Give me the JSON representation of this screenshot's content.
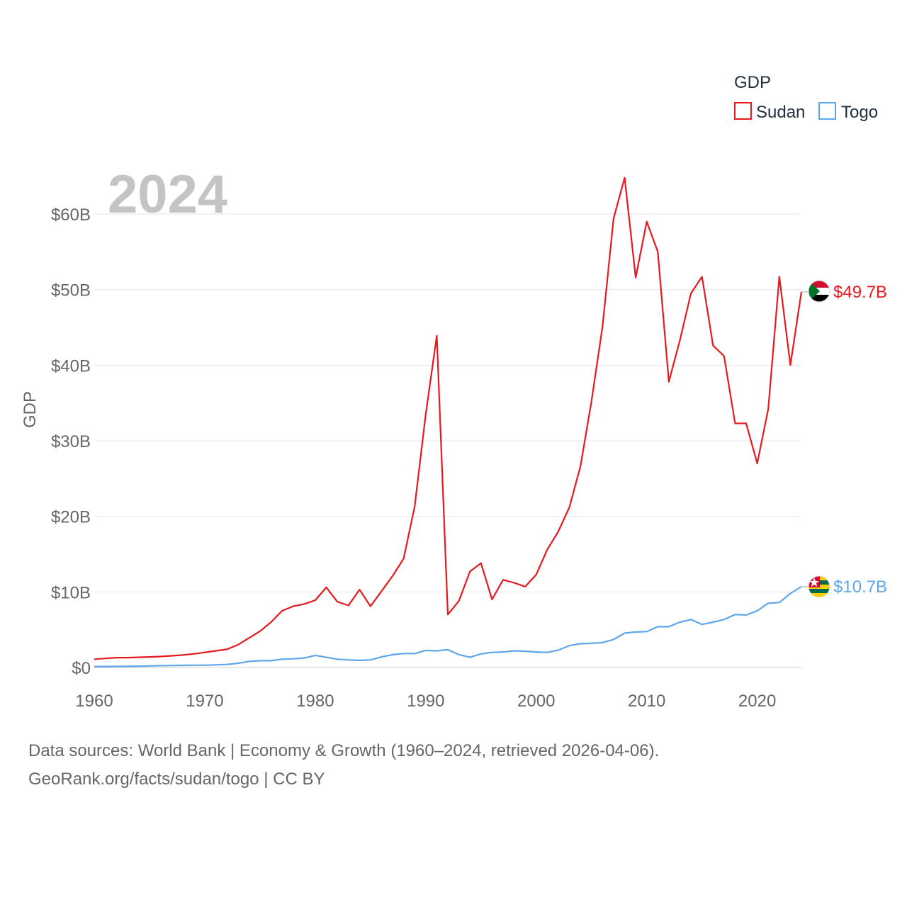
{
  "chart_data": {
    "type": "line",
    "title": "2024",
    "ylabel": "GDP",
    "xlim": [
      1960,
      2024
    ],
    "ylim": [
      0,
      65
    ],
    "x_ticks": [
      "1960",
      "1970",
      "1980",
      "1990",
      "2000",
      "2010",
      "2020"
    ],
    "x_tick_values": [
      1960,
      1970,
      1980,
      1990,
      2000,
      2010,
      2020
    ],
    "y_ticks": [
      "$0",
      "$10B",
      "$20B",
      "$30B",
      "$40B",
      "$50B",
      "$60B"
    ],
    "y_tick_values": [
      0,
      10,
      20,
      30,
      40,
      50,
      60
    ],
    "legend_title": "GDP",
    "x": [
      1960,
      1961,
      1962,
      1963,
      1964,
      1965,
      1966,
      1967,
      1968,
      1969,
      1970,
      1971,
      1972,
      1973,
      1974,
      1975,
      1976,
      1977,
      1978,
      1979,
      1980,
      1981,
      1982,
      1983,
      1984,
      1985,
      1986,
      1987,
      1988,
      1989,
      1990,
      1991,
      1992,
      1993,
      1994,
      1995,
      1996,
      1997,
      1998,
      1999,
      2000,
      2001,
      2002,
      2003,
      2004,
      2005,
      2006,
      2007,
      2008,
      2009,
      2010,
      2011,
      2012,
      2013,
      2014,
      2015,
      2016,
      2017,
      2018,
      2019,
      2020,
      2021,
      2022,
      2023,
      2024
    ],
    "series": [
      {
        "name": "Sudan",
        "color": "#e6191f",
        "end_label": "$49.7B",
        "flag": "sudan-flag-icon",
        "values": [
          1.1,
          1.2,
          1.3,
          1.3,
          1.35,
          1.4,
          1.45,
          1.55,
          1.65,
          1.8,
          2.0,
          2.2,
          2.4,
          3.0,
          3.9,
          4.8,
          6.0,
          7.5,
          8.1,
          8.4,
          8.9,
          10.6,
          8.7,
          8.2,
          10.3,
          8.1,
          10.1,
          12.1,
          14.4,
          21.3,
          33.5,
          43.9,
          7.0,
          8.8,
          12.7,
          13.8,
          9.0,
          11.6,
          11.2,
          10.7,
          12.3,
          15.6,
          18.0,
          21.2,
          26.6,
          35.2,
          45.1,
          59.4,
          64.8,
          51.6,
          59.0,
          55.0,
          37.8,
          43.3,
          49.5,
          51.7,
          42.6,
          41.2,
          32.3,
          32.3,
          27.0,
          34.2,
          51.7,
          40.0,
          49.7
        ]
      },
      {
        "name": "Togo",
        "color": "#5ea6ea",
        "end_label": "$10.7B",
        "flag": "togo-flag-icon",
        "values": [
          0.12,
          0.13,
          0.14,
          0.16,
          0.18,
          0.21,
          0.24,
          0.26,
          0.28,
          0.3,
          0.3,
          0.35,
          0.4,
          0.55,
          0.8,
          0.9,
          0.9,
          1.1,
          1.15,
          1.25,
          1.6,
          1.35,
          1.1,
          1.0,
          0.95,
          1.0,
          1.4,
          1.7,
          1.85,
          1.85,
          2.25,
          2.2,
          2.35,
          1.7,
          1.35,
          1.8,
          2.0,
          2.05,
          2.2,
          2.15,
          2.05,
          2.0,
          2.3,
          2.9,
          3.15,
          3.2,
          3.3,
          3.7,
          4.55,
          4.7,
          4.75,
          5.4,
          5.4,
          6.0,
          6.35,
          5.7,
          6.0,
          6.35,
          7.0,
          6.95,
          7.5,
          8.5,
          8.6,
          9.8,
          10.7
        ]
      }
    ]
  },
  "source": {
    "line1": "Data sources: World Bank | Economy & Growth (1960–2024, retrieved 2026-04-06).",
    "line2": "GeoRank.org/facts/sudan/togo | CC BY"
  }
}
